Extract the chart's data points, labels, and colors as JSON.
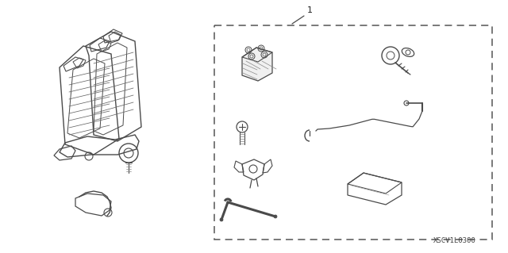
{
  "background_color": "#ffffff",
  "line_color": "#4a4a4a",
  "dash_color": "#555555",
  "label_color": "#222222",
  "watermark": "XSCV1L0300",
  "part_number": "1",
  "fig_width": 6.4,
  "fig_height": 3.19,
  "dpi": 100
}
